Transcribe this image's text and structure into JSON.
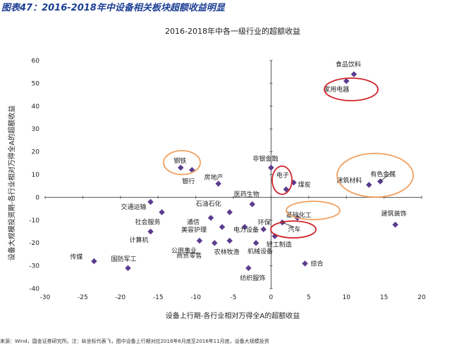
{
  "figure_title": "图表47：2016-2018年中设备相关板块超额收益明显",
  "source_note": "来源：Wind，国金证券研究所。注：纵坐标代表飞，图中设备上行期对应2016年6月底至2016年11月底，设备大规模投资",
  "chart_data": {
    "type": "scatter",
    "title": "2016-2018年中各一级行业的超额收益",
    "xlabel": "设备上行期-各行业相对万得全A的超额收益",
    "ylabel": "设备大规模投资期-各行业相对万得全A的超额收益",
    "xlim": [
      -30,
      20
    ],
    "ylim": [
      -40,
      60
    ],
    "xticks": [
      -30,
      -25,
      -20,
      -15,
      -10,
      -5,
      0,
      5,
      10,
      15,
      20
    ],
    "yticks": [
      -40,
      -30,
      -20,
      -10,
      0,
      10,
      20,
      30,
      40,
      50,
      60
    ],
    "grid": false,
    "marker_color": "#5b3c8f",
    "highlight_color": "#d2232a",
    "accent_color": "#f0a060",
    "points": [
      {
        "label": "食品饮料",
        "x": 11,
        "y": 54
      },
      {
        "label": "家用电器",
        "x": 10,
        "y": 51
      },
      {
        "label": "有色金属",
        "x": 14.5,
        "y": 7
      },
      {
        "label": "建筑材料",
        "x": 13,
        "y": 5.5
      },
      {
        "label": "建筑装饰",
        "x": 16.5,
        "y": -12
      },
      {
        "label": "非银金融",
        "x": 0,
        "y": 13
      },
      {
        "label": "电子",
        "x": 2,
        "y": 3.5
      },
      {
        "label": "煤炭",
        "x": 3,
        "y": 6.5
      },
      {
        "label": "基础化工",
        "x": 3.5,
        "y": -9
      },
      {
        "label": "汽车",
        "x": 1.5,
        "y": -11
      },
      {
        "label": "钢铁",
        "x": -12,
        "y": 13
      },
      {
        "label": "银行",
        "x": -10.5,
        "y": 12
      },
      {
        "label": "房地产",
        "x": -7,
        "y": 6
      },
      {
        "label": "医药生物",
        "x": -2.5,
        "y": -3
      },
      {
        "label": "石油石化",
        "x": -5.5,
        "y": -6.5
      },
      {
        "label": "交通运输",
        "x": -16,
        "y": -2
      },
      {
        "label": "社会服务",
        "x": -14.5,
        "y": -6.5
      },
      {
        "label": "通信",
        "x": -8,
        "y": -9
      },
      {
        "label": "美容护理",
        "x": -6.5,
        "y": -13
      },
      {
        "label": "电力设备",
        "x": -3.5,
        "y": -13
      },
      {
        "label": "环保",
        "x": -1,
        "y": -14
      },
      {
        "label": "计算机",
        "x": -16,
        "y": -15
      },
      {
        "label": "公用事业",
        "x": -9.5,
        "y": -19
      },
      {
        "label": "商贸零售",
        "x": -7.5,
        "y": -20
      },
      {
        "label": "农林牧渔",
        "x": -5.5,
        "y": -19
      },
      {
        "label": "轻工制造",
        "x": 0.5,
        "y": -17
      },
      {
        "label": "机械设备",
        "x": -2,
        "y": -20
      },
      {
        "label": "传媒",
        "x": -23.5,
        "y": -28
      },
      {
        "label": "国防军工",
        "x": -19,
        "y": -31
      },
      {
        "label": "纺织服饰",
        "x": -3,
        "y": -31
      },
      {
        "label": "综合",
        "x": 4.5,
        "y": -29
      }
    ]
  }
}
